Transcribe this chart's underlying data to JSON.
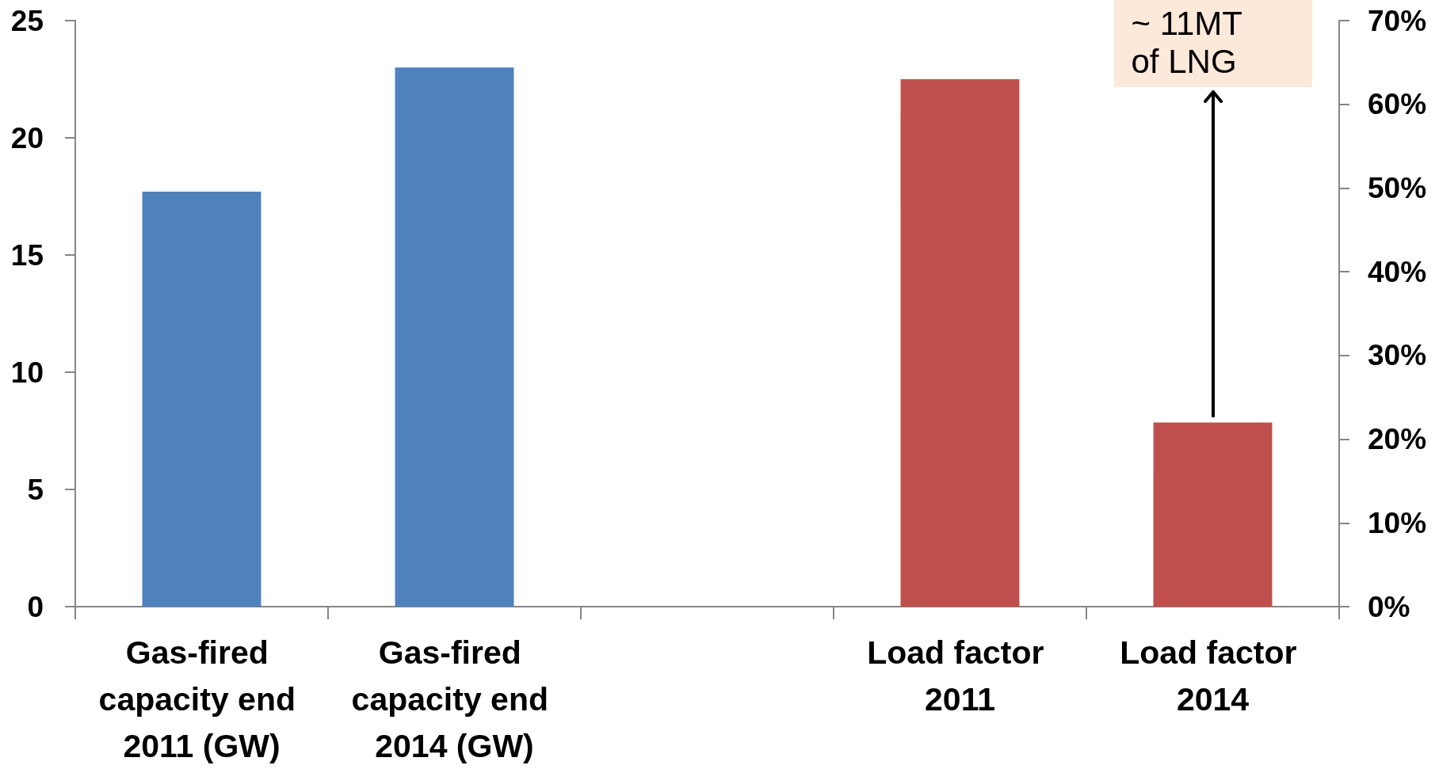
{
  "chart_data": {
    "type": "bar",
    "categories": [
      "Gas-fired capacity end 2011 (GW)",
      "Gas-fired capacity end 2014 (GW)",
      null,
      "Load factor 2011",
      "Load factor 2014"
    ],
    "series": [
      {
        "color": "#4f81bd",
        "values": [
          17.7,
          23.0,
          null,
          null,
          null
        ]
      },
      {
        "color": "#c0504d",
        "axis": "y2",
        "values": [
          null,
          null,
          null,
          63,
          22
        ]
      }
    ],
    "ylim": [
      0,
      25
    ],
    "yticks": [
      0,
      5,
      10,
      15,
      20,
      25
    ],
    "y2lim": [
      0,
      70
    ],
    "y2ticks": [
      {
        "value": 0,
        "label": "0%"
      },
      {
        "value": 10,
        "label": "10%"
      },
      {
        "value": 20,
        "label": "20%"
      },
      {
        "value": 30,
        "label": "30%"
      },
      {
        "value": 40,
        "label": "40%"
      },
      {
        "value": 50,
        "label": "50%"
      },
      {
        "value": 60,
        "label": "60%"
      },
      {
        "value": 70,
        "label": "70%"
      }
    ],
    "annotations": [
      "~ 11MT of LNG"
    ]
  }
}
